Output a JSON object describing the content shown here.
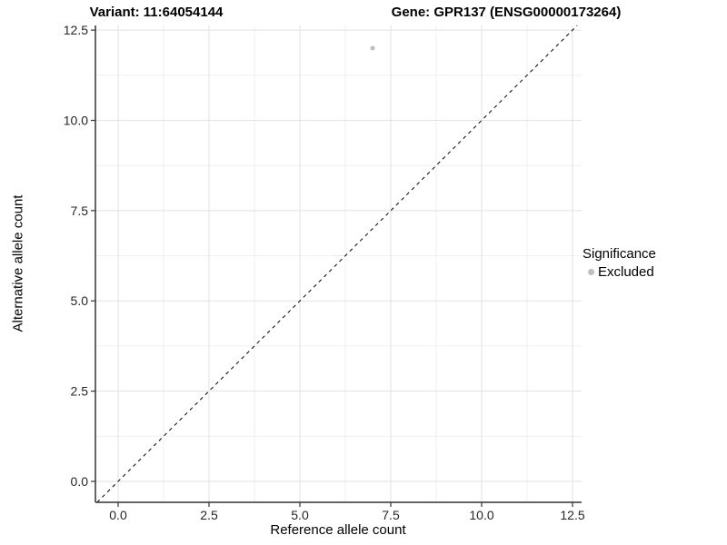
{
  "header": {
    "variant_label": "Variant: 11:64054144",
    "gene_label": "Gene: GPR137 (ENSG00000173264)"
  },
  "chart_data": {
    "type": "scatter",
    "title": "Variant: 11:64054144    Gene: GPR137 (ENSG00000173264)",
    "xlabel": "Reference allele count",
    "ylabel": "Alternative allele count",
    "xlim": [
      -0.625,
      12.75
    ],
    "ylim": [
      -0.58,
      12.63
    ],
    "x_ticks": [
      0.0,
      2.5,
      5.0,
      7.5,
      10.0,
      12.5
    ],
    "y_ticks": [
      0.0,
      2.5,
      5.0,
      7.5,
      10.0,
      12.5
    ],
    "x_tick_labels": [
      "0.0",
      "2.5",
      "5.0",
      "7.5",
      "10.0",
      "12.5"
    ],
    "y_tick_labels": [
      "0.0",
      "2.5",
      "5.0",
      "7.5",
      "10.0",
      "12.5"
    ],
    "minor_ticks": [
      1.25,
      3.75,
      6.25,
      8.75,
      11.25
    ],
    "grid": true,
    "series": [
      {
        "name": "Excluded",
        "color": "#bebebe",
        "points": [
          {
            "x": 7,
            "y": 12
          }
        ]
      }
    ],
    "reference_line": {
      "type": "abline",
      "slope": 1,
      "intercept": 0,
      "style": "dashed",
      "color": "#000000"
    },
    "legend": {
      "title": "Significance",
      "position": "right",
      "items": [
        {
          "label": "Excluded",
          "color": "#bebebe",
          "marker": "circle"
        }
      ]
    }
  },
  "colors": {
    "background": "#ffffff",
    "grid_major": "#e2e2e2",
    "grid_minor": "#efefef",
    "axis_line": "#333333",
    "tick_mark": "#333333",
    "tick_label": "#262626",
    "point": "#bebebe",
    "reference_line": "#000000"
  }
}
